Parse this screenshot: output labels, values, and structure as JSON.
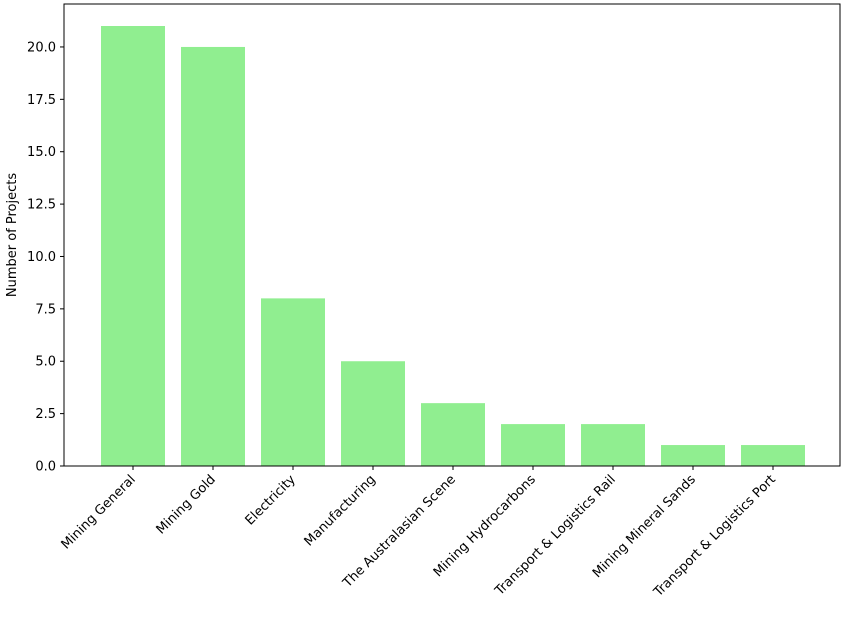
{
  "chart_data": {
    "type": "bar",
    "title": "",
    "xlabel": "",
    "ylabel": "Number of Projects",
    "categories": [
      "Mining General",
      "Mining Gold",
      "Electricity",
      "Manufacturing",
      "The Australasian Scene",
      "Mining Hydrocarbons",
      "Transport & Logistics Rail",
      "Mining Mineral Sands",
      "Transport & Logistics Port"
    ],
    "values": [
      21,
      20,
      8,
      5,
      3,
      2,
      2,
      1,
      1
    ],
    "ylim": [
      0,
      22.05
    ],
    "yticks": [
      "0.0",
      "2.5",
      "5.0",
      "7.5",
      "10.0",
      "12.5",
      "15.0",
      "17.5",
      "20.0"
    ],
    "bar_color": "#90ee90",
    "grid": false,
    "legend": "none"
  }
}
